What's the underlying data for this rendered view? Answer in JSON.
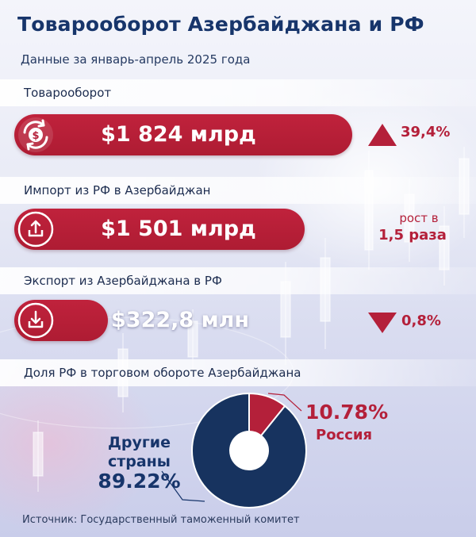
{
  "title": "Товарооборот Азербайджана и РФ",
  "subtitle": "Данные за январь-апрель 2025 года",
  "sections": [
    {
      "label": "Товарооборот",
      "value": "$1 824 млрд",
      "change": "39,4%",
      "trend": "up",
      "icon": "dollar-cycle-icon"
    },
    {
      "label": "Импорт из РФ в Азербайджан",
      "value": "$1 501 млрд",
      "change_line1": "рост в",
      "change_line2": "1,5 раза",
      "icon": "upload-icon"
    },
    {
      "label": "Экспорт из Азербайджана в РФ",
      "value": "$322,8 млн",
      "change": "0,8%",
      "trend": "down",
      "icon": "download-icon"
    }
  ],
  "share_label": "Доля РФ в торговом обороте Азербайджана",
  "source": "Источник: Государственный таможенный комитет",
  "colors": {
    "accent_red": "#b4203a",
    "navy": "#17356b"
  },
  "chart_data": {
    "type": "pie",
    "title": "Доля РФ в торговом обороте Азербайджана",
    "slices": [
      {
        "name": "Россия",
        "value": 10.78,
        "label": "10.78%",
        "color": "#b4203a"
      },
      {
        "name": "Другие страны",
        "value": 89.22,
        "label": "89.22%",
        "color": "#17335f"
      }
    ]
  }
}
